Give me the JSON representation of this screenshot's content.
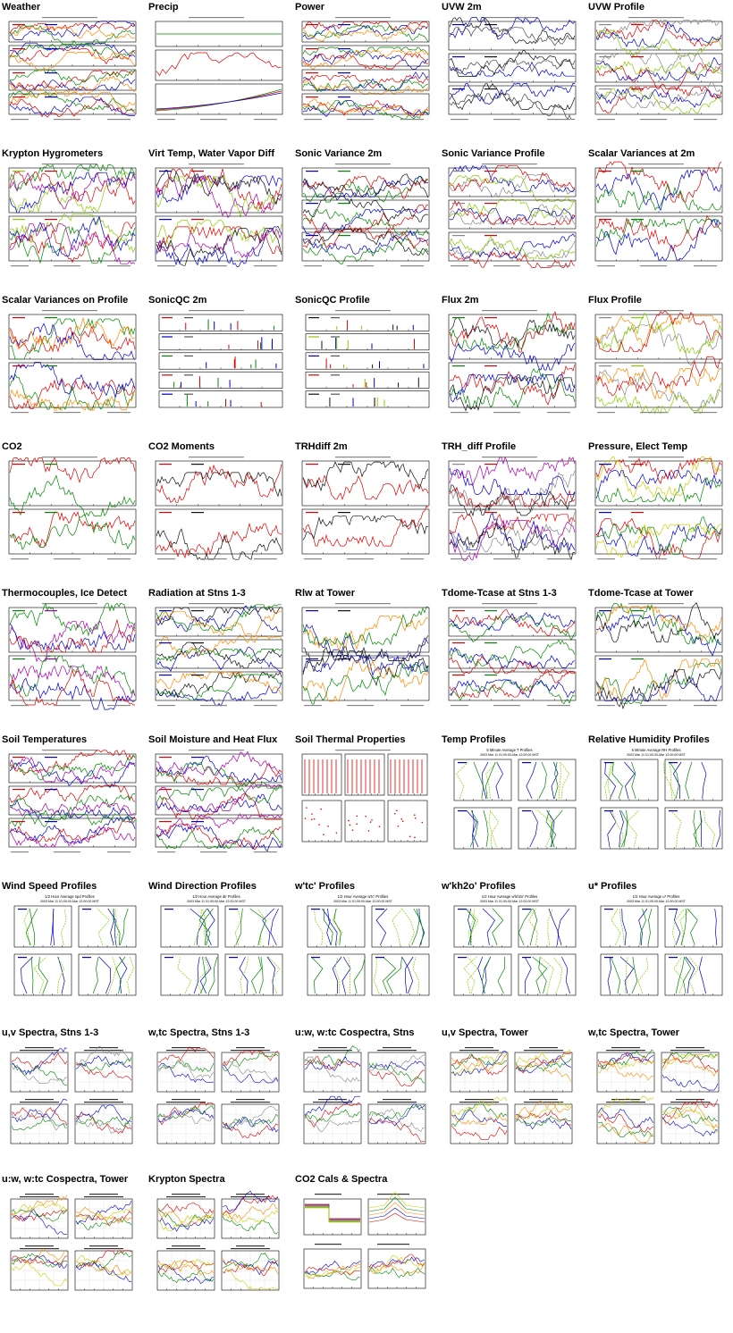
{
  "page": {
    "panels": [
      {
        "title": "Weather",
        "kind": "ts",
        "rows": 4,
        "colors": [
          "#d00",
          "#00c",
          "#080",
          "#f80"
        ]
      },
      {
        "title": "Precip",
        "kind": "ts3",
        "rows": 3,
        "colors": [
          "#080",
          "#d00",
          "#00c"
        ]
      },
      {
        "title": "Power",
        "kind": "ts",
        "rows": 4,
        "colors": [
          "#d00",
          "#00c",
          "#080",
          "#f80"
        ]
      },
      {
        "title": "UVW 2m",
        "kind": "ts",
        "rows": 3,
        "colors": [
          "#00c",
          "#111",
          "#444"
        ]
      },
      {
        "title": "UVW Profile",
        "kind": "ts",
        "rows": 3,
        "colors": [
          "#888",
          "#d00",
          "#8c0",
          "#00c"
        ]
      },
      {
        "title": "Krypton Hygrometers",
        "kind": "ts",
        "rows": 2,
        "colors": [
          "#8c0",
          "#d00",
          "#080",
          "#00c",
          "#a0a"
        ]
      },
      {
        "title": "Virt Temp, Water Vapor Diff",
        "kind": "ts",
        "rows": 2,
        "colors": [
          "#00c",
          "#d00",
          "#8c0",
          "#a0a",
          "#111"
        ]
      },
      {
        "title": "Sonic Variance 2m",
        "kind": "ts",
        "rows": 3,
        "colors": [
          "#00c",
          "#080",
          "#d00",
          "#111"
        ]
      },
      {
        "title": "Sonic Variance Profile",
        "kind": "ts",
        "rows": 3,
        "colors": [
          "#888",
          "#d00",
          "#00c",
          "#8c0"
        ]
      },
      {
        "title": "Scalar Variances at 2m",
        "kind": "ts",
        "rows": 2,
        "colors": [
          "#d00",
          "#080",
          "#00c"
        ]
      },
      {
        "title": "Scalar Variances on Profile",
        "kind": "ts",
        "rows": 2,
        "colors": [
          "#d00",
          "#080",
          "#00c",
          "#f80"
        ]
      },
      {
        "title": "SonicQC 2m",
        "kind": "qc",
        "rows": 5,
        "colors": [
          "#d00",
          "#00c",
          "#080"
        ]
      },
      {
        "title": "SonicQC Profile",
        "kind": "qc",
        "rows": 5,
        "colors": [
          "#111",
          "#8c0",
          "#00c",
          "#d00"
        ]
      },
      {
        "title": "Flux 2m",
        "kind": "ts",
        "rows": 2,
        "colors": [
          "#080",
          "#d00",
          "#00c",
          "#111"
        ]
      },
      {
        "title": "Flux Profile",
        "kind": "ts",
        "rows": 2,
        "colors": [
          "#888",
          "#8c0",
          "#f80",
          "#d00"
        ]
      },
      {
        "title": "CO2",
        "kind": "ts",
        "rows": 2,
        "colors": [
          "#d00",
          "#080"
        ]
      },
      {
        "title": "CO2 Moments",
        "kind": "ts",
        "rows": 2,
        "colors": [
          "#d00",
          "#111"
        ]
      },
      {
        "title": "TRHdiff 2m",
        "kind": "ts",
        "rows": 2,
        "colors": [
          "#d00",
          "#111"
        ]
      },
      {
        "title": "TRH_diff Profile",
        "kind": "ts",
        "rows": 2,
        "colors": [
          "#888",
          "#d00",
          "#00c",
          "#a0a",
          "#111"
        ]
      },
      {
        "title": "Pressure, Elect Temp",
        "kind": "ts",
        "rows": 2,
        "colors": [
          "#00c",
          "#d00",
          "#080",
          "#cc0"
        ]
      },
      {
        "title": "Thermocouples, Ice Detect",
        "kind": "ts",
        "rows": 2,
        "colors": [
          "#080",
          "#a0a",
          "#00c",
          "#d00"
        ]
      },
      {
        "title": "Radiation at Stns 1-3",
        "kind": "ts",
        "rows": 3,
        "colors": [
          "#00c",
          "#111",
          "#080",
          "#f80"
        ]
      },
      {
        "title": "Rlw at Tower",
        "kind": "ts",
        "rows": 2,
        "colors": [
          "#00c",
          "#111",
          "#f80",
          "#080"
        ]
      },
      {
        "title": "Tdome-Tcase at Stns 1-3",
        "kind": "ts",
        "rows": 3,
        "colors": [
          "#d00",
          "#080",
          "#00c"
        ]
      },
      {
        "title": "Tdome-Tcase at Tower",
        "kind": "ts",
        "rows": 2,
        "colors": [
          "#00c",
          "#080",
          "#f80",
          "#111"
        ]
      },
      {
        "title": "Soil Temperatures",
        "kind": "ts",
        "rows": 3,
        "colors": [
          "#d00",
          "#00c",
          "#080",
          "#a0a"
        ]
      },
      {
        "title": "Soil Moisture and Heat Flux",
        "kind": "ts",
        "rows": 3,
        "colors": [
          "#d00",
          "#00c",
          "#080",
          "#a0a"
        ]
      },
      {
        "title": "Soil Thermal Properties",
        "kind": "soil",
        "rows": 2,
        "colors": [
          "#d00"
        ]
      },
      {
        "title": "Temp Profiles",
        "kind": "prof",
        "rows": 2,
        "colors": [
          "#00c",
          "#8c0",
          "#080"
        ],
        "plot_title": "5 Minute Average T Profiles",
        "plot_subtitle": "2003 Mar 11 01:00:00-Mar 12:00:00 MST"
      },
      {
        "title": "Relative Humidity Profiles",
        "kind": "prof",
        "rows": 2,
        "colors": [
          "#00c",
          "#8c0",
          "#080"
        ],
        "plot_title": "5 Minute Average RH Profiles",
        "plot_subtitle": "2003 Mar 11 01:00:00-Mar 12:00:00 MST"
      },
      {
        "title": "Wind Speed Profiles",
        "kind": "prof",
        "rows": 2,
        "colors": [
          "#00c",
          "#8c0",
          "#080"
        ],
        "plot_title": "1/2 Hour Average spd Profiles",
        "plot_subtitle": "2003 Mar 11 01:00:00-Mar 12:00:00 MST"
      },
      {
        "title": "Wind Direction Profiles",
        "kind": "prof",
        "rows": 2,
        "colors": [
          "#00c",
          "#8c0",
          "#080"
        ],
        "plot_title": "1/2 Hour Average dir Profiles",
        "plot_subtitle": "2003 Mar 11 01:00:00-Mar 12:00:00 MST"
      },
      {
        "title": "w'tc' Profiles",
        "kind": "prof",
        "rows": 2,
        "colors": [
          "#00c",
          "#8c0",
          "#080"
        ],
        "plot_title": "1/2 Hour Average w'tc' Profiles",
        "plot_subtitle": "2003 Mar 11 01:00:00-Mar 12:00:00 MST"
      },
      {
        "title": "w'kh2o' Profiles",
        "kind": "prof",
        "rows": 2,
        "colors": [
          "#00c",
          "#8c0",
          "#080"
        ],
        "plot_title": "1/2 Hour Average w'kh2o' Profiles",
        "plot_subtitle": "2003 Mar 11 01:00:00-Mar 12:00:00 MST"
      },
      {
        "title": "u* Profiles",
        "kind": "prof",
        "rows": 2,
        "colors": [
          "#00c",
          "#8c0",
          "#080"
        ],
        "plot_title": "1/2 Hour Average u* Profiles",
        "plot_subtitle": "2003 Mar 11 01:00:00-Mar 12:00:00 MST"
      },
      {
        "title": "u,v Spectra, Stns 1-3",
        "kind": "spec",
        "rows": 2,
        "colors": [
          "#d00",
          "#080",
          "#00c",
          "#888"
        ]
      },
      {
        "title": "w,tc Spectra, Stns 1-3",
        "kind": "spec",
        "rows": 2,
        "colors": [
          "#d00",
          "#080",
          "#00c",
          "#888"
        ]
      },
      {
        "title": "u:w, w:tc Cospectra, Stns",
        "kind": "spec",
        "rows": 2,
        "colors": [
          "#d00",
          "#080",
          "#00c",
          "#888"
        ]
      },
      {
        "title": "u,v Spectra, Tower",
        "kind": "spec",
        "rows": 2,
        "colors": [
          "#d00",
          "#080",
          "#00c",
          "#cc0",
          "#f80"
        ]
      },
      {
        "title": "w,tc Spectra, Tower",
        "kind": "spec",
        "rows": 2,
        "colors": [
          "#d00",
          "#080",
          "#00c",
          "#cc0",
          "#f80"
        ]
      },
      {
        "title": "u:w, w:tc Cospectra, Tower",
        "kind": "spec",
        "rows": 2,
        "colors": [
          "#d00",
          "#080",
          "#00c",
          "#cc0",
          "#f80"
        ]
      },
      {
        "title": "Krypton Spectra",
        "kind": "spec",
        "rows": 2,
        "colors": [
          "#d00",
          "#080",
          "#00c",
          "#cc0",
          "#f80"
        ]
      },
      {
        "title": "CO2 Cals & Spectra",
        "kind": "co2",
        "rows": 2,
        "colors": [
          "#d00",
          "#00c",
          "#f80",
          "#080",
          "#cc0"
        ]
      }
    ]
  }
}
